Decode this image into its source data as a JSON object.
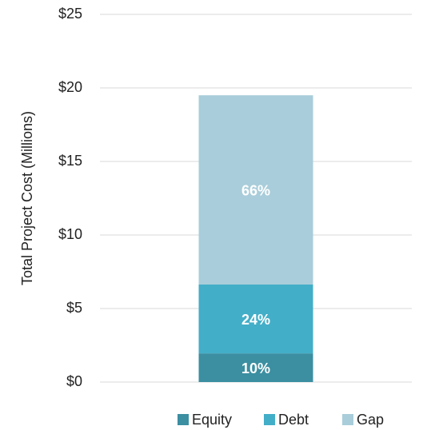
{
  "chart_data": {
    "type": "stacked_bar",
    "y_label": "Total Project Cost (Millions)",
    "categories": [
      null
    ],
    "series": [
      {
        "name": "Equity",
        "color": "#3b8fa1",
        "values": [
          1.95
        ],
        "value_labels": [
          "10%"
        ]
      },
      {
        "name": "Debt",
        "color": "#43aec8",
        "values": [
          4.68
        ],
        "value_labels": [
          "24%"
        ]
      },
      {
        "name": "Gap",
        "color": "#a9cdda",
        "values": [
          12.87
        ],
        "value_labels": [
          "66%"
        ]
      }
    ],
    "ylim": [
      0,
      25
    ],
    "yticks": [
      {
        "value": 0,
        "label": "$0"
      },
      {
        "value": 5,
        "label": "$5"
      },
      {
        "value": 10,
        "label": "$10"
      },
      {
        "value": 15,
        "label": "$15"
      },
      {
        "value": 20,
        "label": "$20"
      },
      {
        "value": 25,
        "label": "$25"
      }
    ],
    "grid": true,
    "legend": "bottom"
  }
}
